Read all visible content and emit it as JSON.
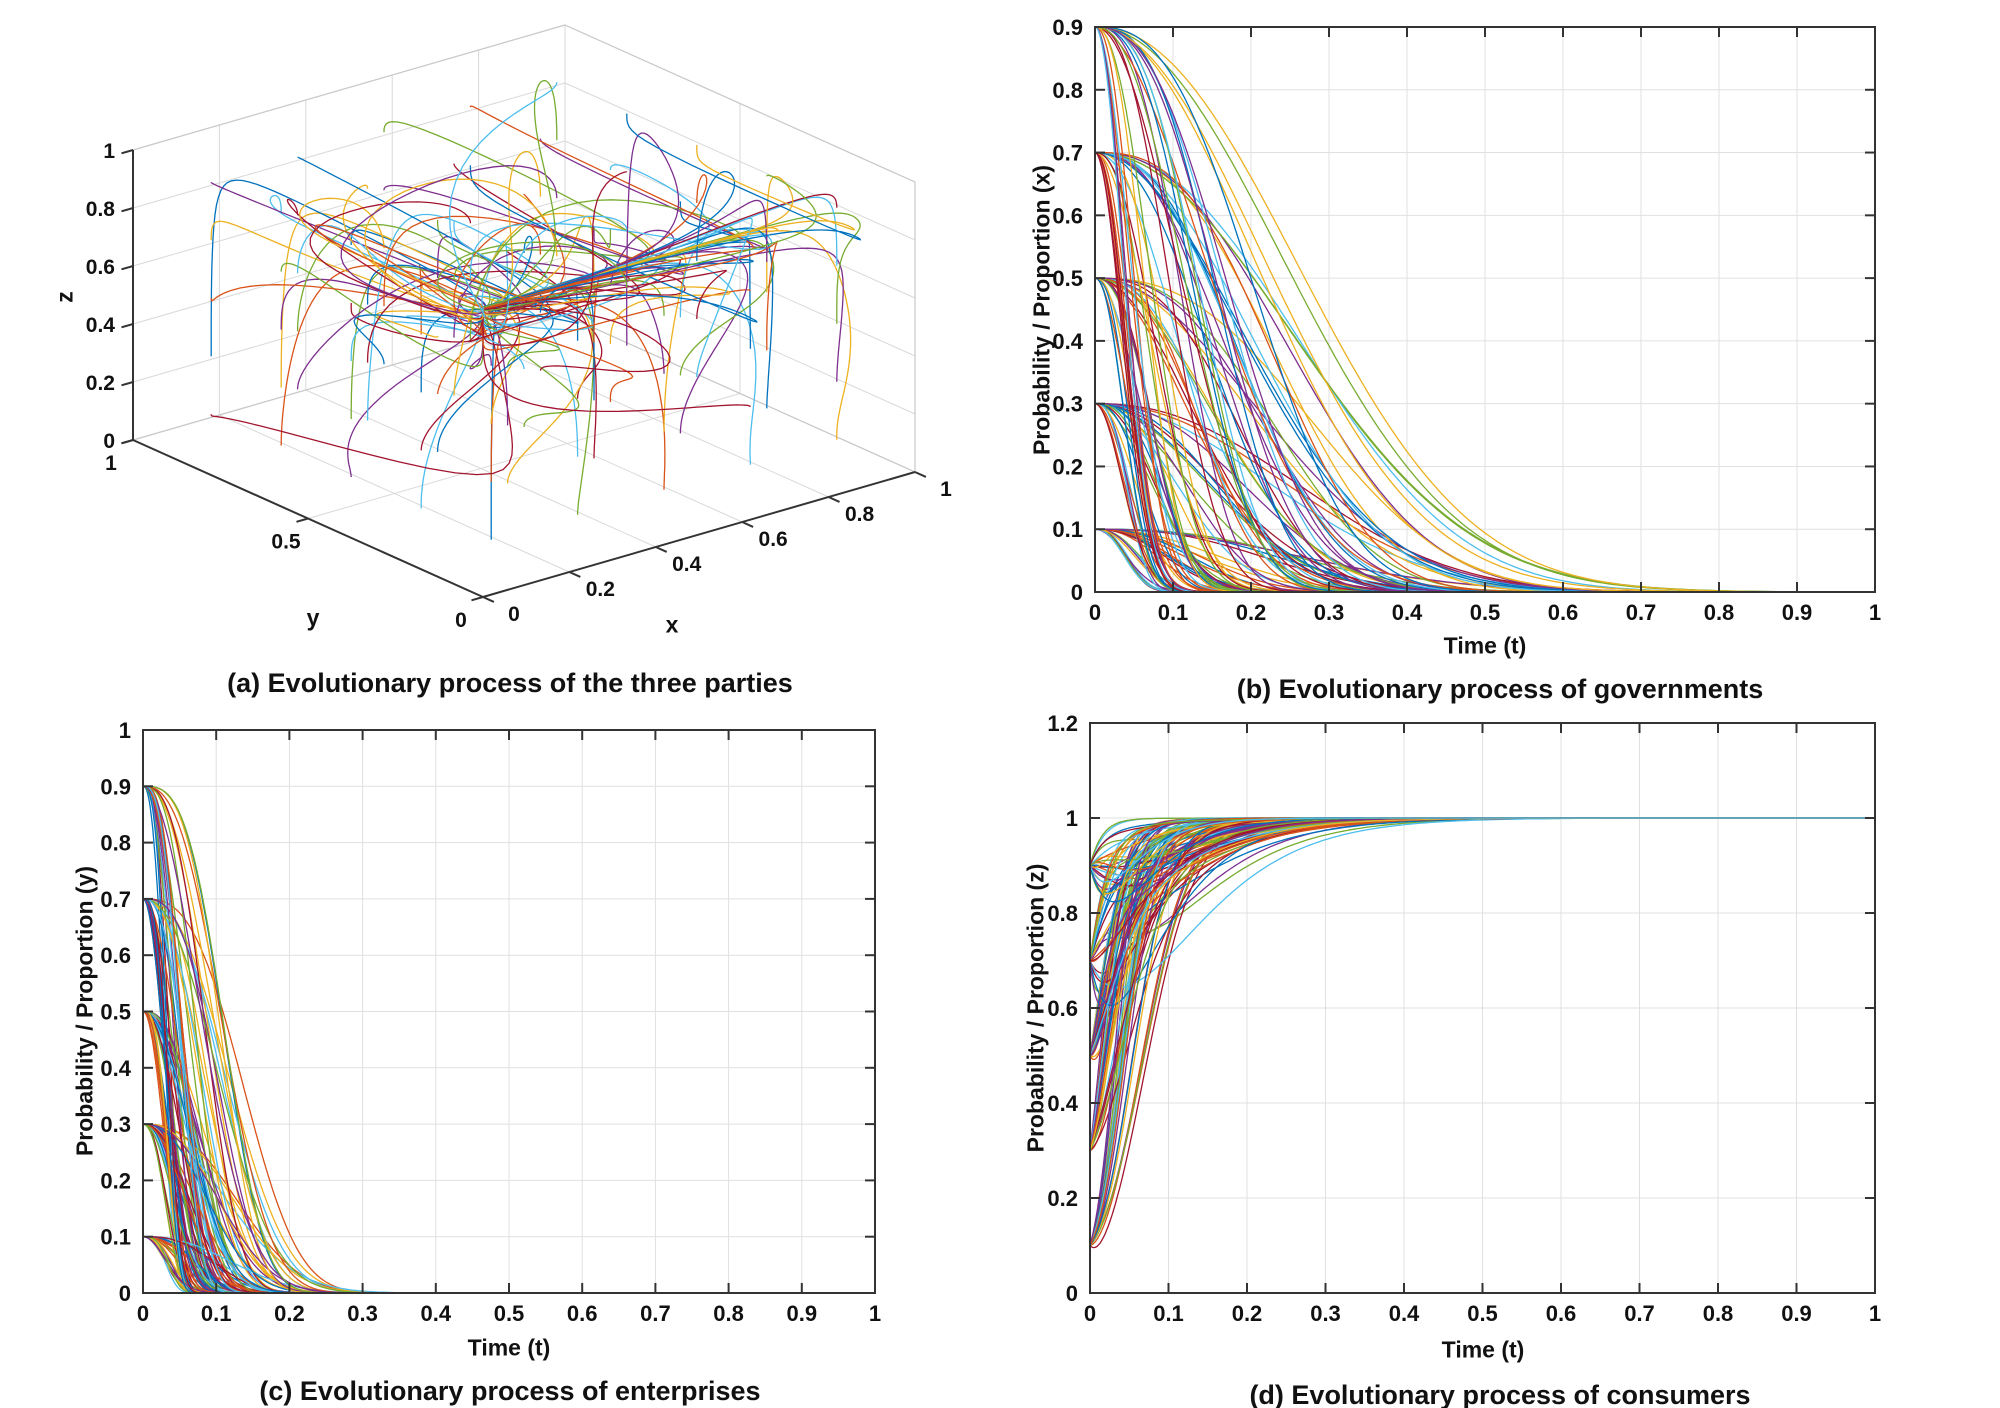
{
  "figure": {
    "background": "#ffffff",
    "description": "Four-panel MATLAB-style figure of an evolutionary game: 3D phase portrait and per-player evolution curves from 125 initial conditions (all combinations of 0.1,0.3,0.5,0.7,0.9) converging to the equilibrium (x,y,z)=(0,0,1)."
  },
  "colors": {
    "series": [
      "#0072BD",
      "#D95319",
      "#EDB120",
      "#7E2F8E",
      "#77AC30",
      "#4DBEEE",
      "#A2142F"
    ],
    "grid": "#e0e0e0",
    "wall_grid": "#d9d9d9",
    "box_light": "#c9c9c9",
    "axis": "#333333",
    "text": "#111111"
  },
  "chart_data": [
    {
      "id": "a",
      "type": "line3d",
      "caption": "(a) Evolutionary process of the three parties",
      "axes": {
        "x": {
          "label": "x",
          "range": [
            0,
            1
          ],
          "ticks": [
            0,
            0.2,
            0.4,
            0.6,
            0.8,
            1
          ],
          "tick_labels": [
            "0",
            "0.2",
            "0.4",
            "0.6",
            "0.8",
            "1"
          ]
        },
        "y": {
          "label": "y",
          "range": [
            0,
            1
          ],
          "ticks": [
            0,
            0.5,
            1
          ],
          "tick_labels": [
            "0",
            "0.5",
            "1"
          ]
        },
        "z": {
          "label": "z",
          "range": [
            0,
            1
          ],
          "ticks": [
            0,
            0.2,
            0.4,
            0.6,
            0.8,
            1
          ],
          "tick_labels": [
            "0",
            "0.2",
            "0.4",
            "0.6",
            "0.8",
            "1"
          ]
        }
      },
      "trajectories": {
        "count": 125,
        "initial_value_grid": [
          0.1,
          0.3,
          0.5,
          0.7,
          0.9
        ],
        "equilibrium": [
          0,
          0,
          1
        ],
        "description": "Each curve starts at (x0,y0,z0) on the 5x5x5 grid; x and y decay to 0, z rises to 1, producing a knot of trajectories at (0,0,1)."
      }
    },
    {
      "id": "b",
      "type": "line",
      "caption": "(b) Evolutionary process of governments",
      "xlabel": "Time (t)",
      "ylabel": "Probability / Proportion (x)",
      "xlim": [
        0,
        1
      ],
      "ylim": [
        0,
        0.9
      ],
      "xticks": [
        0,
        0.1,
        0.2,
        0.3,
        0.4,
        0.5,
        0.6,
        0.7,
        0.8,
        0.9,
        1
      ],
      "xtick_labels": [
        "0",
        "0.1",
        "0.2",
        "0.3",
        "0.4",
        "0.5",
        "0.6",
        "0.7",
        "0.8",
        "0.9",
        "1"
      ],
      "yticks": [
        0,
        0.1,
        0.2,
        0.3,
        0.4,
        0.5,
        0.6,
        0.7,
        0.8,
        0.9
      ],
      "ytick_labels": [
        "0",
        "0.1",
        "0.2",
        "0.3",
        "0.4",
        "0.5",
        "0.6",
        "0.7",
        "0.8",
        "0.9"
      ],
      "grid": true,
      "family": {
        "variable": "x",
        "count": 125,
        "start_values": [
          0.1,
          0.3,
          0.5,
          0.7,
          0.9
        ],
        "end_value": 0,
        "shape": "gaussian-decay",
        "settle_time_range": [
          0.1,
          0.9
        ]
      }
    },
    {
      "id": "c",
      "type": "line",
      "caption": "(c) Evolutionary process of enterprises",
      "xlabel": "Time (t)",
      "ylabel": "Probability / Proportion (y)",
      "xlim": [
        0,
        1
      ],
      "ylim": [
        0,
        1
      ],
      "xticks": [
        0,
        0.1,
        0.2,
        0.3,
        0.4,
        0.5,
        0.6,
        0.7,
        0.8,
        0.9,
        1
      ],
      "xtick_labels": [
        "0",
        "0.1",
        "0.2",
        "0.3",
        "0.4",
        "0.5",
        "0.6",
        "0.7",
        "0.8",
        "0.9",
        "1"
      ],
      "yticks": [
        0,
        0.1,
        0.2,
        0.3,
        0.4,
        0.5,
        0.6,
        0.7,
        0.8,
        0.9,
        1
      ],
      "ytick_labels": [
        "0",
        "0.1",
        "0.2",
        "0.3",
        "0.4",
        "0.5",
        "0.6",
        "0.7",
        "0.8",
        "0.9",
        "1"
      ],
      "grid": true,
      "family": {
        "variable": "y",
        "count": 125,
        "start_values": [
          0.1,
          0.3,
          0.5,
          0.7,
          0.9
        ],
        "end_value": 0,
        "shape": "gaussian-decay",
        "settle_time_range": [
          0.08,
          0.45
        ]
      }
    },
    {
      "id": "d",
      "type": "line",
      "caption": "(d) Evolutionary process of consumers",
      "xlabel": "Time (t)",
      "ylabel": "Probability / Proportion (z)",
      "xlim": [
        0,
        1
      ],
      "ylim": [
        0,
        1.2
      ],
      "xticks": [
        0,
        0.1,
        0.2,
        0.3,
        0.4,
        0.5,
        0.6,
        0.7,
        0.8,
        0.9,
        1
      ],
      "xtick_labels": [
        "0",
        "0.1",
        "0.2",
        "0.3",
        "0.4",
        "0.5",
        "0.6",
        "0.7",
        "0.8",
        "0.9",
        "1"
      ],
      "yticks": [
        0,
        0.2,
        0.4,
        0.6,
        0.8,
        1,
        1.2
      ],
      "ytick_labels": [
        "0",
        "0.2",
        "0.4",
        "0.6",
        "0.8",
        "1",
        "1.2"
      ],
      "grid": true,
      "family": {
        "variable": "z",
        "count": 125,
        "start_values": [
          0.1,
          0.3,
          0.5,
          0.7,
          0.9
        ],
        "end_value": 1,
        "shape": "logistic-rise-with-initial-dip",
        "settle_time_range": [
          0.1,
          0.3
        ]
      }
    }
  ]
}
